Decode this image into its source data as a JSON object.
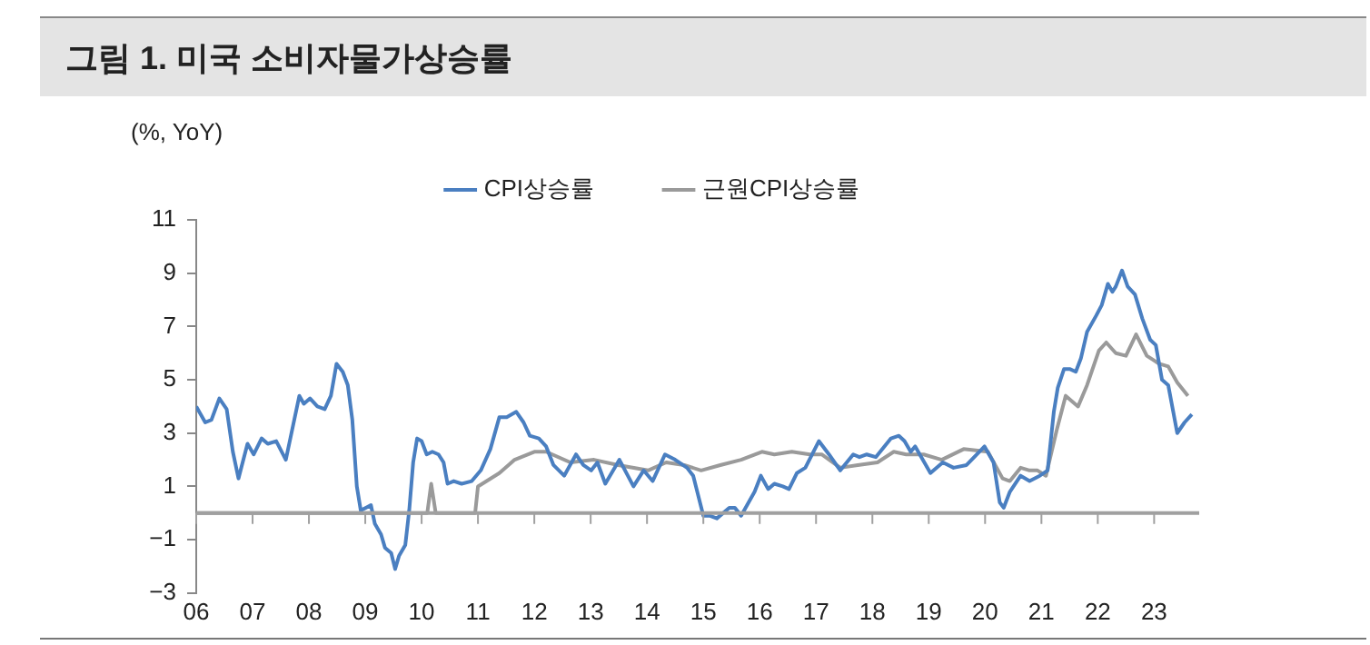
{
  "chart_data": {
    "type": "line",
    "title": "그림 1. 미국 소비자물가상승률",
    "ylabel": "(%, YoY)",
    "xlim": [
      2006,
      2023.8
    ],
    "xticks": [
      {
        "value": 2006,
        "label": "06"
      },
      {
        "value": 2007,
        "label": "07"
      },
      {
        "value": 2008,
        "label": "08"
      },
      {
        "value": 2009,
        "label": "09"
      },
      {
        "value": 2010,
        "label": "10"
      },
      {
        "value": 2011,
        "label": "11"
      },
      {
        "value": 2012,
        "label": "12"
      },
      {
        "value": 2013,
        "label": "13"
      },
      {
        "value": 2014,
        "label": "14"
      },
      {
        "value": 2015,
        "label": "15"
      },
      {
        "value": 2016,
        "label": "16"
      },
      {
        "value": 2017,
        "label": "17"
      },
      {
        "value": 2018,
        "label": "18"
      },
      {
        "value": 2019,
        "label": "19"
      },
      {
        "value": 2020,
        "label": "20"
      },
      {
        "value": 2021,
        "label": "21"
      },
      {
        "value": 2022,
        "label": "22"
      },
      {
        "value": 2023,
        "label": "23"
      }
    ],
    "ylim": [
      -3,
      11
    ],
    "yticks": [
      {
        "value": -3,
        "label": "−3"
      },
      {
        "value": -1,
        "label": "−1"
      },
      1,
      3,
      5,
      7,
      9,
      11
    ],
    "ref_lines": [
      {
        "axis": "y",
        "value": 0,
        "color": "#a0a0a0"
      }
    ],
    "grid": false,
    "legend": "top",
    "marker": "none",
    "line_style": "solid",
    "series": [
      {
        "name": "CPI상승률",
        "color": "#4a7fc1",
        "x": [
          2006.0,
          2006.16,
          2006.27,
          2006.41,
          2006.54,
          2006.65,
          2006.75,
          2006.91,
          2007.02,
          2007.16,
          2007.27,
          2007.42,
          2007.59,
          2007.83,
          2007.91,
          2008.02,
          2008.15,
          2008.28,
          2008.39,
          2008.49,
          2008.6,
          2008.69,
          2008.77,
          2008.85,
          2008.92,
          2009.01,
          2009.1,
          2009.17,
          2009.28,
          2009.35,
          2009.46,
          2009.53,
          2009.6,
          2009.71,
          2009.78,
          2009.85,
          2009.92,
          2010.0,
          2010.09,
          2010.19,
          2010.3,
          2010.39,
          2010.46,
          2010.57,
          2010.71,
          2010.89,
          2011.05,
          2011.22,
          2011.38,
          2011.51,
          2011.68,
          2011.81,
          2011.92,
          2012.08,
          2012.21,
          2012.34,
          2012.53,
          2012.74,
          2012.87,
          2013.01,
          2013.12,
          2013.26,
          2013.51,
          2013.76,
          2013.94,
          2014.1,
          2014.32,
          2014.5,
          2014.71,
          2014.82,
          2015.0,
          2015.11,
          2015.24,
          2015.46,
          2015.56,
          2015.67,
          2015.91,
          2016.02,
          2016.15,
          2016.26,
          2016.41,
          2016.52,
          2016.66,
          2016.81,
          2017.05,
          2017.23,
          2017.43,
          2017.66,
          2017.77,
          2017.9,
          2018.06,
          2018.33,
          2018.47,
          2018.57,
          2018.68,
          2018.76,
          2019.03,
          2019.25,
          2019.44,
          2019.67,
          2019.99,
          2020.15,
          2020.26,
          2020.33,
          2020.44,
          2020.63,
          2020.79,
          2020.97,
          2021.11,
          2021.22,
          2021.29,
          2021.4,
          2021.51,
          2021.61,
          2021.7,
          2021.81,
          2021.97,
          2022.07,
          2022.18,
          2022.26,
          2022.32,
          2022.43,
          2022.53,
          2022.66,
          2022.79,
          2022.93,
          2023.03,
          2023.14,
          2023.25,
          2023.41,
          2023.54,
          2023.67
        ],
        "values": [
          4.0,
          3.4,
          3.5,
          4.3,
          3.9,
          2.3,
          1.3,
          2.6,
          2.2,
          2.8,
          2.6,
          2.7,
          2.0,
          4.4,
          4.1,
          4.3,
          4.0,
          3.9,
          4.4,
          5.6,
          5.3,
          4.8,
          3.5,
          1.0,
          0.1,
          0.2,
          0.3,
          -0.4,
          -0.8,
          -1.3,
          -1.5,
          -2.1,
          -1.6,
          -1.2,
          0.1,
          1.9,
          2.8,
          2.7,
          2.2,
          2.3,
          2.2,
          1.9,
          1.1,
          1.2,
          1.1,
          1.2,
          1.6,
          2.4,
          3.6,
          3.6,
          3.8,
          3.4,
          2.9,
          2.8,
          2.5,
          1.8,
          1.4,
          2.2,
          1.8,
          1.6,
          1.9,
          1.1,
          2.0,
          1.0,
          1.6,
          1.2,
          2.2,
          2.0,
          1.7,
          1.4,
          -0.1,
          -0.1,
          -0.2,
          0.2,
          0.2,
          -0.1,
          0.8,
          1.4,
          0.9,
          1.1,
          1.0,
          0.9,
          1.5,
          1.7,
          2.7,
          2.2,
          1.6,
          2.2,
          2.1,
          2.2,
          2.1,
          2.8,
          2.9,
          2.7,
          2.3,
          2.5,
          1.5,
          1.9,
          1.7,
          1.8,
          2.5,
          1.9,
          0.4,
          0.2,
          0.8,
          1.4,
          1.2,
          1.4,
          1.6,
          3.8,
          4.7,
          5.4,
          5.4,
          5.3,
          5.8,
          6.8,
          7.4,
          7.8,
          8.6,
          8.3,
          8.5,
          9.1,
          8.5,
          8.2,
          7.3,
          6.5,
          6.3,
          5.0,
          4.8,
          3.0,
          3.4,
          3.7
        ]
      },
      {
        "name": "근원CPI상승률",
        "color": "#9a9a9a",
        "x": [
          2006.0,
          2010.1,
          2010.17,
          2010.25,
          2010.95,
          2011.0,
          2011.38,
          2011.65,
          2012.0,
          2012.21,
          2012.64,
          2013.06,
          2013.49,
          2014.02,
          2014.34,
          2014.66,
          2014.96,
          2015.3,
          2015.67,
          2016.04,
          2016.26,
          2016.57,
          2016.89,
          2017.1,
          2017.43,
          2017.74,
          2018.09,
          2018.38,
          2018.6,
          2018.91,
          2019.23,
          2019.62,
          2020.05,
          2020.31,
          2020.44,
          2020.63,
          2020.79,
          2020.93,
          2021.08,
          2021.27,
          2021.43,
          2021.65,
          2021.81,
          2022.02,
          2022.15,
          2022.32,
          2022.5,
          2022.68,
          2022.87,
          2023.09,
          2023.25,
          2023.41,
          2023.6
        ],
        "values": [
          0,
          0,
          1.1,
          0,
          0,
          1.0,
          1.5,
          2.0,
          2.3,
          2.3,
          1.9,
          2.0,
          1.8,
          1.6,
          1.9,
          1.8,
          1.6,
          1.8,
          2.0,
          2.3,
          2.2,
          2.3,
          2.2,
          2.2,
          1.7,
          1.8,
          1.9,
          2.3,
          2.2,
          2.2,
          2.0,
          2.4,
          2.3,
          1.3,
          1.2,
          1.7,
          1.6,
          1.6,
          1.4,
          3.1,
          4.4,
          4.0,
          4.8,
          6.1,
          6.4,
          6.0,
          5.9,
          6.7,
          5.9,
          5.6,
          5.5,
          4.9,
          4.4
        ]
      }
    ]
  }
}
